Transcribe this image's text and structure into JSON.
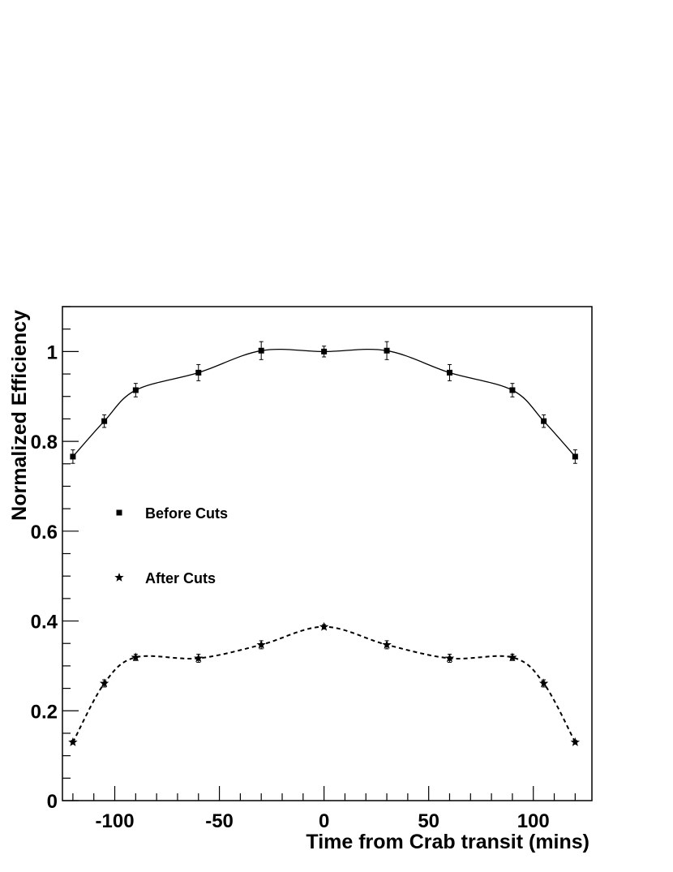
{
  "chart_data": {
    "type": "scatter",
    "title": "",
    "xlabel": "Time from Crab transit (mins)",
    "ylabel": "Normalized Efficiency",
    "xlim": [
      -125,
      128
    ],
    "ylim": [
      0,
      1.1
    ],
    "xticks": [
      -100,
      -50,
      0,
      50,
      100
    ],
    "xtick_labels": [
      "-100",
      "-50",
      "0",
      "50",
      "100"
    ],
    "yticks": [
      0,
      0.2,
      0.4,
      0.6,
      0.8,
      1
    ],
    "ytick_labels": [
      "0",
      "0.2",
      "0.4",
      "0.6",
      "0.8",
      "1"
    ],
    "grid": false,
    "legend": "left-middle",
    "series": [
      {
        "name": "Before Cuts",
        "marker": "square",
        "line": "solid",
        "x": [
          -120,
          -105,
          -90,
          -60,
          -30,
          0,
          30,
          60,
          90,
          105,
          120
        ],
        "y": [
          0.766,
          0.845,
          0.914,
          0.953,
          1.002,
          1.0,
          1.002,
          0.953,
          0.914,
          0.845,
          0.766
        ],
        "yerr": [
          0.015,
          0.014,
          0.015,
          0.018,
          0.02,
          0.012,
          0.02,
          0.018,
          0.015,
          0.014,
          0.015
        ]
      },
      {
        "name": "After Cuts",
        "marker": "star",
        "line": "dashed",
        "x": [
          -120,
          -105,
          -90,
          -60,
          -30,
          0,
          30,
          60,
          90,
          105,
          120
        ],
        "y": [
          0.13,
          0.261,
          0.319,
          0.317,
          0.347,
          0.387,
          0.347,
          0.317,
          0.319,
          0.261,
          0.13
        ],
        "yerr": [
          0.004,
          0.008,
          0.007,
          0.009,
          0.009,
          0.005,
          0.009,
          0.009,
          0.007,
          0.008,
          0.004
        ]
      }
    ]
  }
}
